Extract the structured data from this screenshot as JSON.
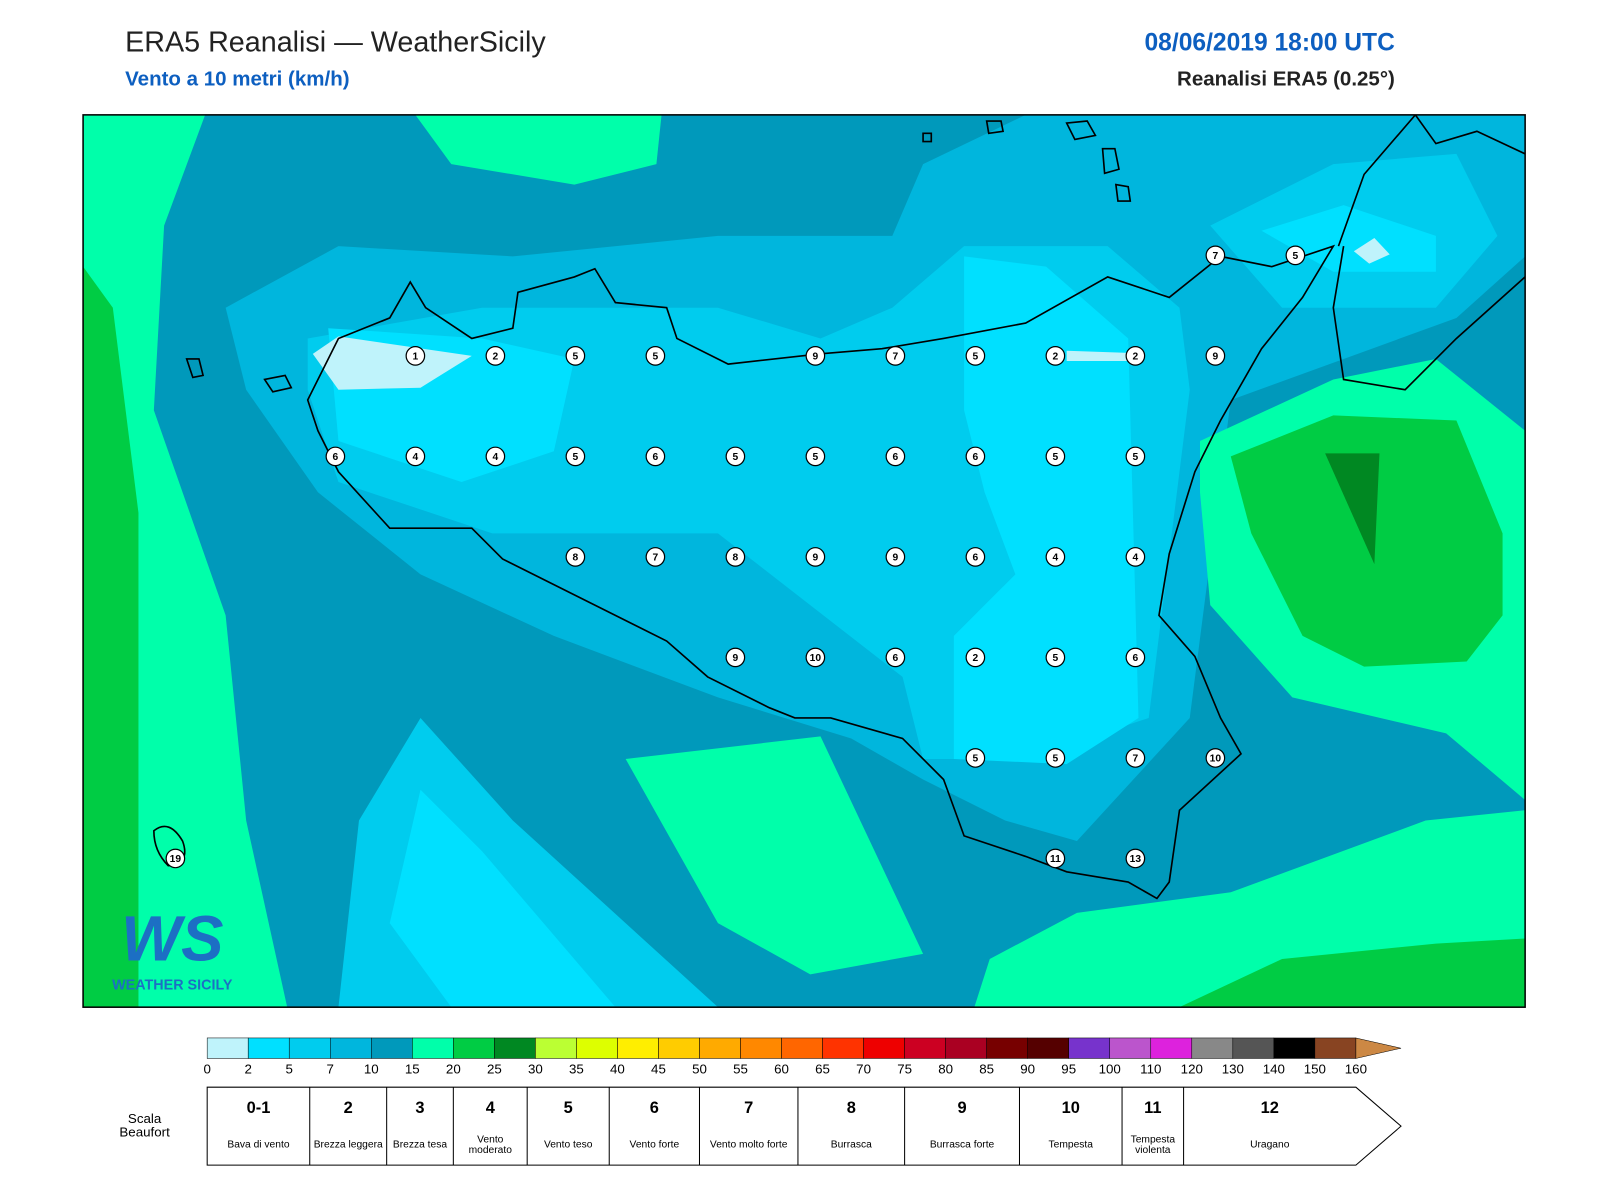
{
  "header": {
    "title": "ERA5 Reanalisi — WeatherSicily",
    "subtitle": "Vento a 10 metri (km/h)",
    "datetime": "08/06/2019 18:00 UTC",
    "model": "Reanalisi ERA5 (0.25°)"
  },
  "map": {
    "grid_rows": [
      [
        null,
        null,
        null,
        null,
        null,
        null,
        null,
        null,
        null,
        null,
        null,
        null,
        null,
        7,
        5
      ],
      [
        null,
        null,
        null,
        1,
        2,
        5,
        5,
        null,
        9,
        7,
        5,
        2,
        2,
        9,
        null
      ],
      [
        null,
        null,
        6,
        4,
        4,
        5,
        6,
        5,
        5,
        6,
        6,
        5,
        5,
        null,
        null
      ],
      [
        null,
        null,
        null,
        null,
        null,
        8,
        7,
        8,
        9,
        9,
        6,
        4,
        4,
        null,
        null
      ],
      [
        null,
        null,
        null,
        null,
        null,
        null,
        null,
        9,
        10,
        6,
        2,
        5,
        6,
        null,
        null
      ],
      [
        null,
        null,
        null,
        null,
        null,
        null,
        null,
        null,
        null,
        null,
        5,
        5,
        7,
        10,
        null
      ],
      [
        19,
        null,
        null,
        null,
        null,
        null,
        null,
        null,
        null,
        null,
        null,
        11,
        13,
        null,
        null
      ]
    ]
  },
  "logo": {
    "mark": "WS",
    "name": "WEATHER SICILY"
  },
  "colorbar": {
    "ticks": [
      0,
      2,
      5,
      7,
      10,
      15,
      20,
      25,
      30,
      35,
      40,
      45,
      50,
      55,
      60,
      65,
      70,
      75,
      80,
      85,
      90,
      95,
      100,
      110,
      120,
      130,
      140,
      150,
      160
    ],
    "colors": [
      "#bff3fb",
      "#00e0ff",
      "#00ccee",
      "#00b6dd",
      "#0099bb",
      "#00ffaa",
      "#00cc44",
      "#008822",
      "#bbff33",
      "#ddff00",
      "#ffee00",
      "#ffcc00",
      "#ffaa00",
      "#ff8800",
      "#ff6600",
      "#ff3300",
      "#ee0000",
      "#cc0022",
      "#aa0022",
      "#770000",
      "#550000",
      "#7733cc",
      "#bb55cc",
      "#dd22dd",
      "#888888",
      "#555555",
      "#000000",
      "#884422",
      "#cc8844"
    ]
  },
  "beaufort": {
    "title": "Scala Beaufort",
    "levels": [
      {
        "force": "0-1",
        "label": "Bava di vento"
      },
      {
        "force": "2",
        "label": "Brezza leggera"
      },
      {
        "force": "3",
        "label": "Brezza tesa"
      },
      {
        "force": "4",
        "label": "Vento moderato"
      },
      {
        "force": "5",
        "label": "Vento teso"
      },
      {
        "force": "6",
        "label": "Vento forte"
      },
      {
        "force": "7",
        "label": "Vento molto forte"
      },
      {
        "force": "8",
        "label": "Burrasca"
      },
      {
        "force": "9",
        "label": "Burrasca forte"
      },
      {
        "force": "10",
        "label": "Tempesta"
      },
      {
        "force": "11",
        "label": "Tempesta violenta"
      },
      {
        "force": "12",
        "label": "Uragano"
      }
    ]
  }
}
